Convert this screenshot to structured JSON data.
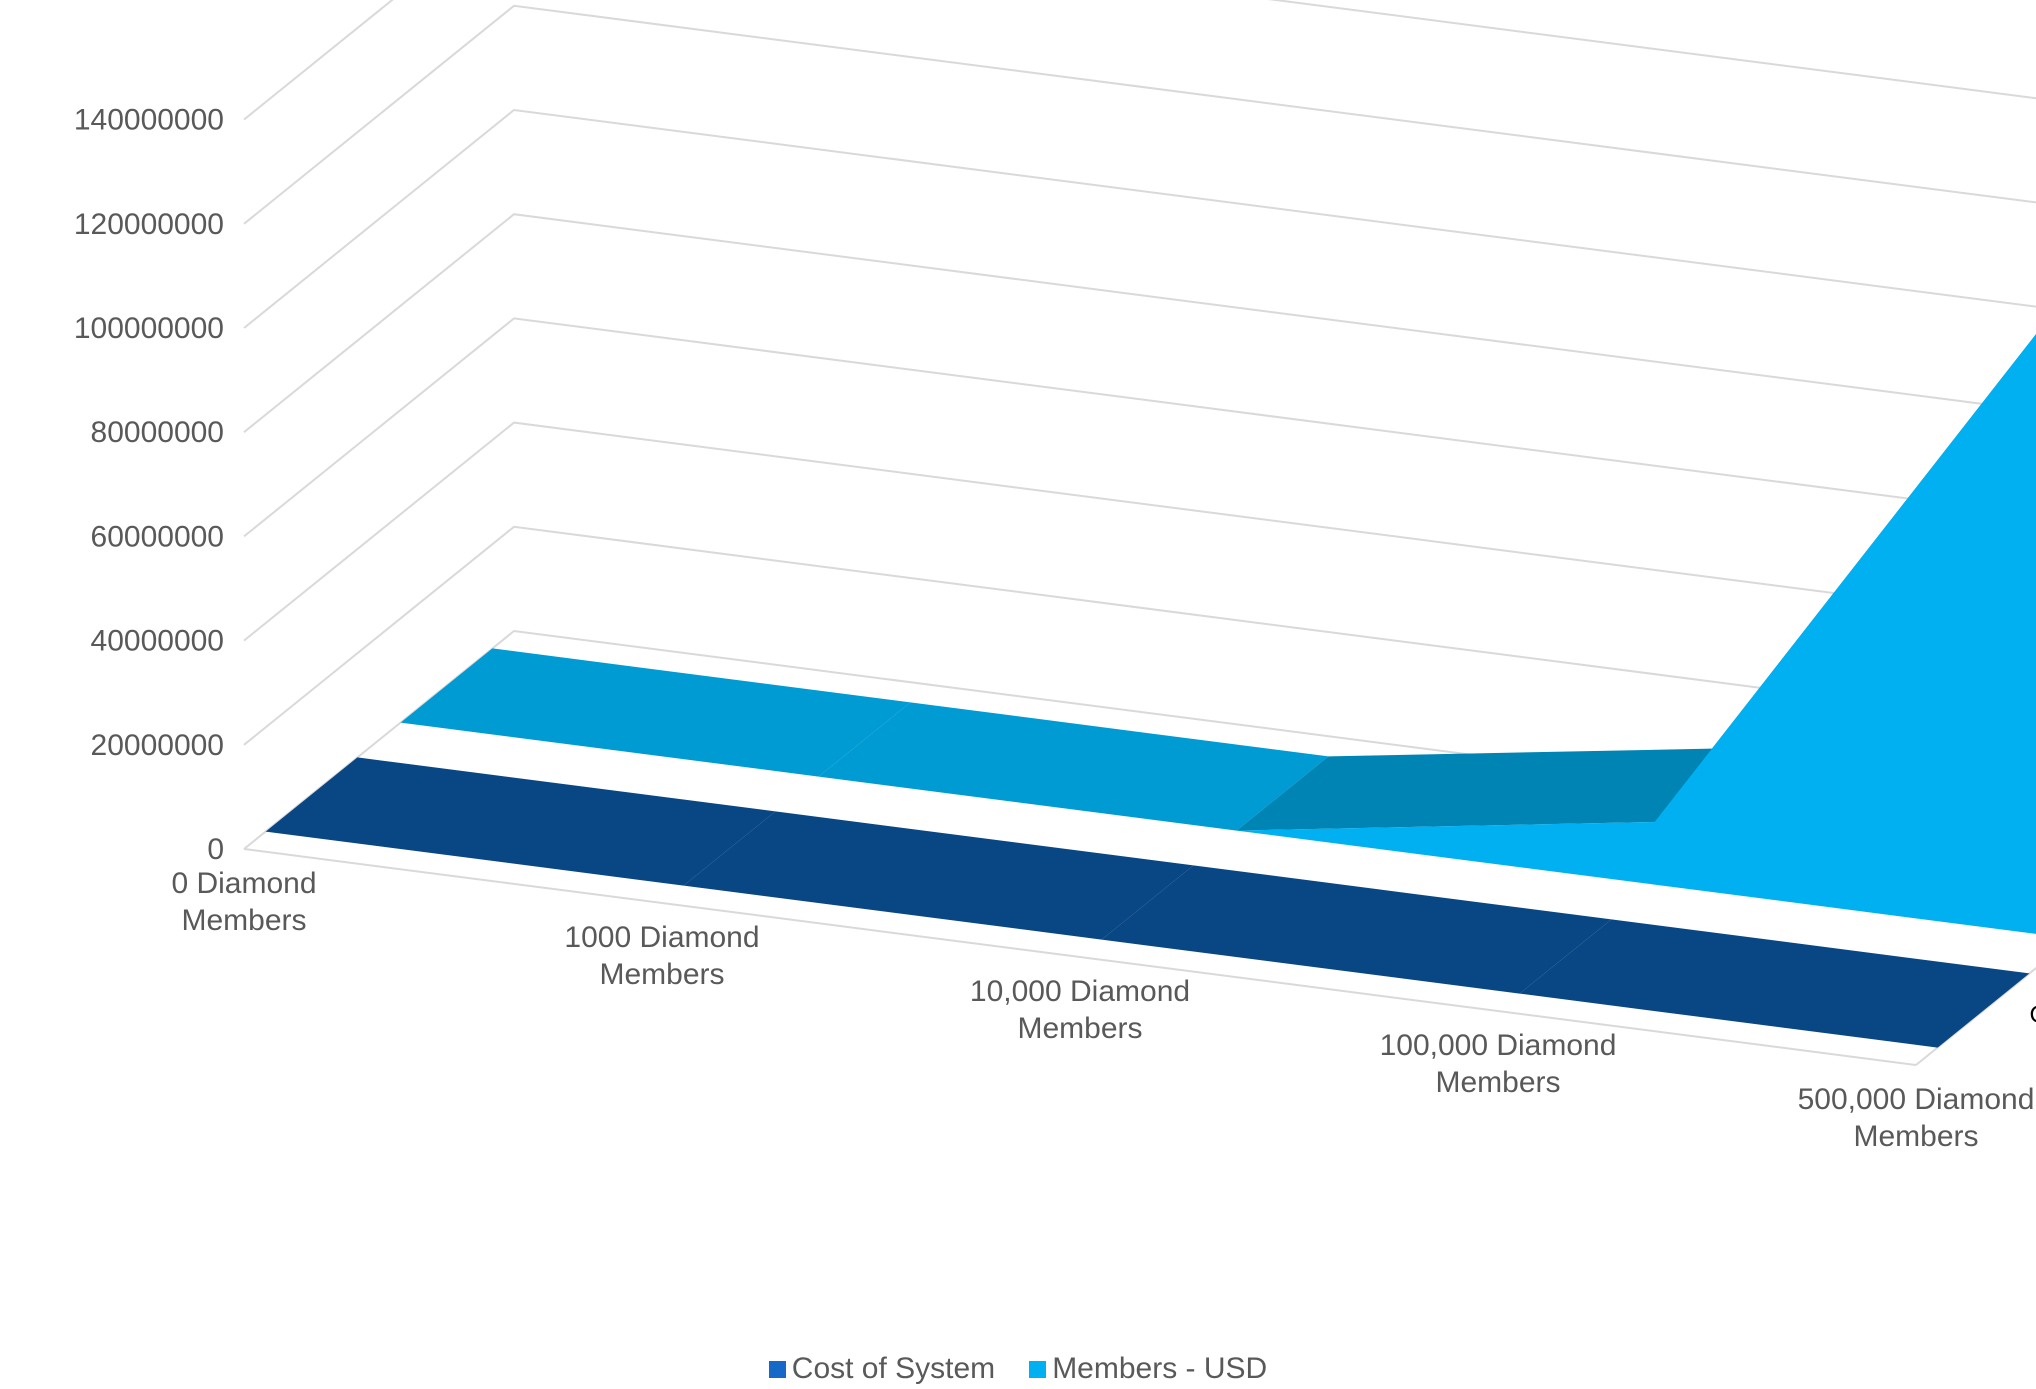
{
  "chart_data": {
    "type": "area",
    "variant": "3d",
    "categories": [
      "0 Diamond Members",
      "1000 Diamond Members",
      "10,000 Diamond Members",
      "100,000 Diamond Members",
      "500,000 Diamond Members"
    ],
    "category_label_lines": [
      [
        "0 Diamond",
        "Members"
      ],
      [
        "1000 Diamond",
        "Members"
      ],
      [
        "10,000 Diamond",
        "Members"
      ],
      [
        "100,000 Diamond",
        "Members"
      ],
      [
        "500,000 Diamond",
        "Members"
      ]
    ],
    "series": [
      {
        "name": "Cost of System",
        "values": [
          0,
          0,
          0,
          0,
          0
        ],
        "color": "#0A5196"
      },
      {
        "name": "Members - USD",
        "values": [
          0,
          0,
          0,
          12000000,
          125000000
        ],
        "color": "#00B0F0"
      }
    ],
    "y_ticks": [
      "0",
      "20000000",
      "40000000",
      "60000000",
      "80000000",
      "100000000",
      "120000000",
      "140000000"
    ],
    "ylim": [
      0,
      140000000
    ],
    "series_axis_labels": [
      "Cost of System",
      "Members - USD"
    ],
    "grid": true,
    "legend_position": "bottom",
    "title": "",
    "xlabel": "",
    "ylabel": ""
  },
  "legend": {
    "items": [
      {
        "label": "Cost of System",
        "color": "#1569C7"
      },
      {
        "label": "Members - USD",
        "color": "#00B0F0"
      }
    ]
  }
}
